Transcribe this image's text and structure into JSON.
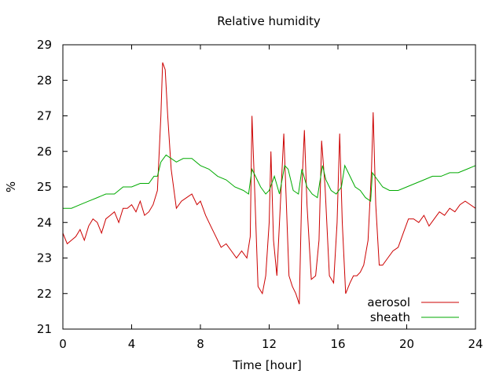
{
  "chart_data": {
    "type": "line",
    "title": "Relative humidity",
    "xlabel": "Time [hour]",
    "ylabel": "%",
    "xlim": [
      0,
      24
    ],
    "ylim": [
      21,
      29
    ],
    "xticks": [
      0,
      4,
      8,
      12,
      16,
      20,
      24
    ],
    "yticks": [
      21,
      22,
      23,
      24,
      25,
      26,
      27,
      28,
      29
    ],
    "grid": false,
    "legend_position": "bottom-right",
    "series": [
      {
        "name": "aerosol",
        "color": "#cc0000",
        "x": [
          0,
          0.25,
          0.5,
          0.75,
          1,
          1.25,
          1.5,
          1.75,
          2,
          2.25,
          2.5,
          2.75,
          3,
          3.25,
          3.5,
          3.75,
          4,
          4.25,
          4.5,
          4.75,
          5,
          5.25,
          5.5,
          5.7,
          5.8,
          5.95,
          6.1,
          6.3,
          6.6,
          6.9,
          7.2,
          7.5,
          7.8,
          8,
          8.3,
          8.6,
          8.9,
          9.2,
          9.5,
          9.8,
          10.1,
          10.4,
          10.7,
          10.9,
          11,
          11.15,
          11.35,
          11.6,
          11.8,
          12,
          12.1,
          12.25,
          12.45,
          12.65,
          12.85,
          13,
          13.15,
          13.35,
          13.55,
          13.75,
          13.9,
          14.05,
          14.2,
          14.45,
          14.7,
          14.9,
          15.05,
          15.25,
          15.5,
          15.75,
          15.95,
          16.1,
          16.25,
          16.45,
          16.7,
          16.9,
          17.1,
          17.3,
          17.5,
          17.75,
          17.95,
          18.05,
          18.2,
          18.4,
          18.6,
          18.9,
          19.2,
          19.5,
          19.8,
          20.1,
          20.4,
          20.7,
          21,
          21.3,
          21.6,
          21.9,
          22.2,
          22.5,
          22.8,
          23.1,
          23.4,
          23.7,
          24
        ],
        "y": [
          23.7,
          23.4,
          23.5,
          23.6,
          23.8,
          23.5,
          23.9,
          24.1,
          24.0,
          23.7,
          24.1,
          24.2,
          24.3,
          24.0,
          24.4,
          24.4,
          24.5,
          24.3,
          24.6,
          24.2,
          24.3,
          24.5,
          24.9,
          27.0,
          28.5,
          28.3,
          27.0,
          25.5,
          24.4,
          24.6,
          24.7,
          24.8,
          24.5,
          24.6,
          24.2,
          23.9,
          23.6,
          23.3,
          23.4,
          23.2,
          23.0,
          23.2,
          23.0,
          23.6,
          27.0,
          25.0,
          22.2,
          22.0,
          22.5,
          24.0,
          26.0,
          23.5,
          22.5,
          24.5,
          26.5,
          24.5,
          22.5,
          22.2,
          22.0,
          21.7,
          25.0,
          26.6,
          24.5,
          22.4,
          22.5,
          23.5,
          26.3,
          25.0,
          22.5,
          22.3,
          24.0,
          26.5,
          24.0,
          22.0,
          22.3,
          22.5,
          22.5,
          22.6,
          22.8,
          23.5,
          25.5,
          27.1,
          24.5,
          22.8,
          22.8,
          23.0,
          23.2,
          23.3,
          23.7,
          24.1,
          24.1,
          24.0,
          24.2,
          23.9,
          24.1,
          24.3,
          24.2,
          24.4,
          24.3,
          24.5,
          24.6,
          24.5,
          24.4
        ]
      },
      {
        "name": "sheath",
        "color": "#00aa00",
        "x": [
          0,
          0.5,
          1,
          1.5,
          2,
          2.5,
          3,
          3.5,
          4,
          4.5,
          5,
          5.3,
          5.5,
          5.7,
          6,
          6.3,
          6.6,
          7,
          7.5,
          8,
          8.5,
          9,
          9.5,
          10,
          10.5,
          10.8,
          11,
          11.2,
          11.5,
          11.8,
          12,
          12.3,
          12.6,
          12.9,
          13.1,
          13.4,
          13.7,
          13.9,
          14.2,
          14.5,
          14.8,
          15.1,
          15.3,
          15.6,
          15.9,
          16.2,
          16.4,
          16.7,
          17,
          17.3,
          17.6,
          17.9,
          18,
          18.3,
          18.6,
          19,
          19.5,
          20,
          20.5,
          21,
          21.5,
          22,
          22.5,
          23,
          23.5,
          24
        ],
        "y": [
          24.4,
          24.4,
          24.5,
          24.6,
          24.7,
          24.8,
          24.8,
          25.0,
          25.0,
          25.1,
          25.1,
          25.3,
          25.3,
          25.7,
          25.9,
          25.8,
          25.7,
          25.8,
          25.8,
          25.6,
          25.5,
          25.3,
          25.2,
          25.0,
          24.9,
          24.8,
          25.5,
          25.3,
          25.0,
          24.8,
          24.9,
          25.3,
          24.8,
          25.6,
          25.5,
          24.9,
          24.8,
          25.5,
          25.0,
          24.8,
          24.7,
          25.6,
          25.2,
          24.9,
          24.8,
          25.0,
          25.6,
          25.3,
          25.0,
          24.9,
          24.7,
          24.6,
          25.4,
          25.2,
          25.0,
          24.9,
          24.9,
          25.0,
          25.1,
          25.2,
          25.3,
          25.3,
          25.4,
          25.4,
          25.5,
          25.6
        ]
      }
    ]
  }
}
